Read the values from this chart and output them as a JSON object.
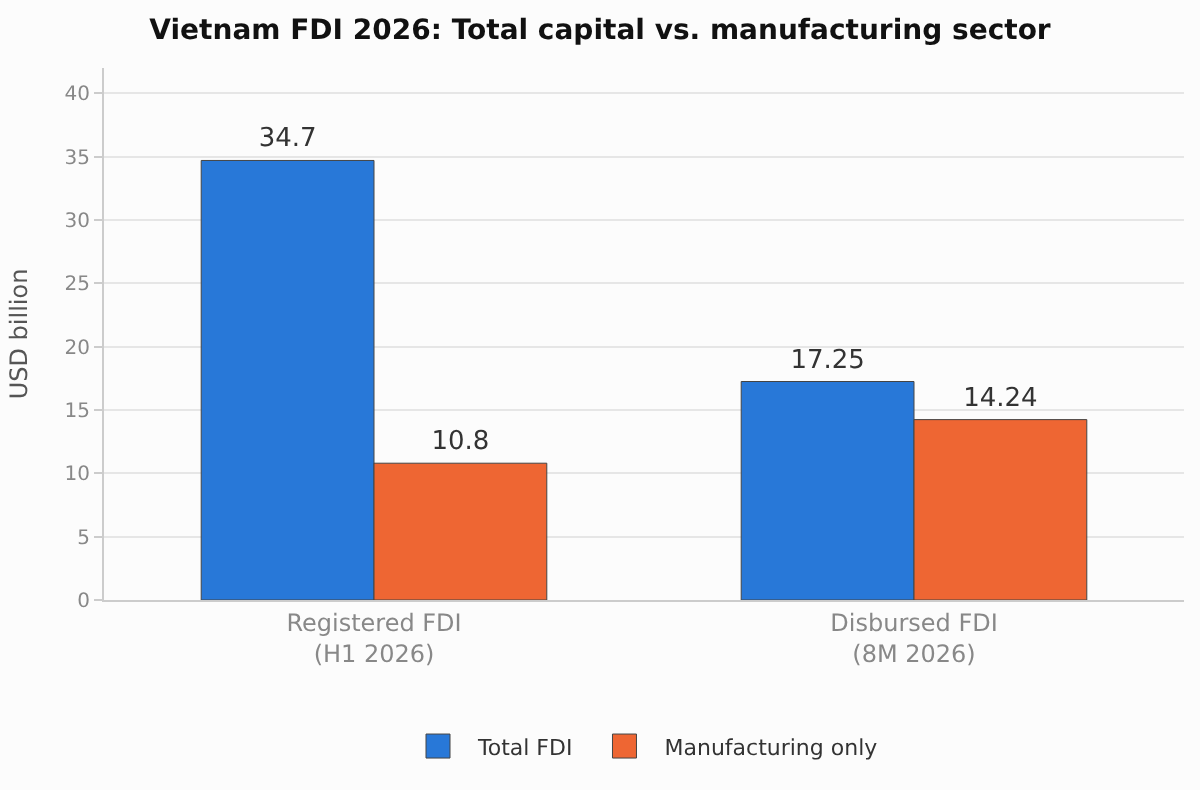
{
  "chart_data": {
    "type": "bar",
    "title": "Vietnam FDI 2026: Total capital vs. manufacturing sector",
    "ylabel": "USD billion",
    "categories": [
      "Registered FDI\n(H1 2026)",
      "Disbursed FDI\n(8M 2026)"
    ],
    "series": [
      {
        "name": "Total FDI",
        "color": "#2878d8",
        "values": [
          34.7,
          17.25
        ]
      },
      {
        "name": "Manufacturing only",
        "color": "#ee6633",
        "values": [
          10.8,
          14.24
        ]
      }
    ],
    "ylim": [
      0,
      42
    ],
    "yticks": [
      0,
      5,
      10,
      15,
      20,
      25,
      30,
      35,
      40
    ],
    "grid": "y",
    "legend": "bottom",
    "data_labels": true
  }
}
